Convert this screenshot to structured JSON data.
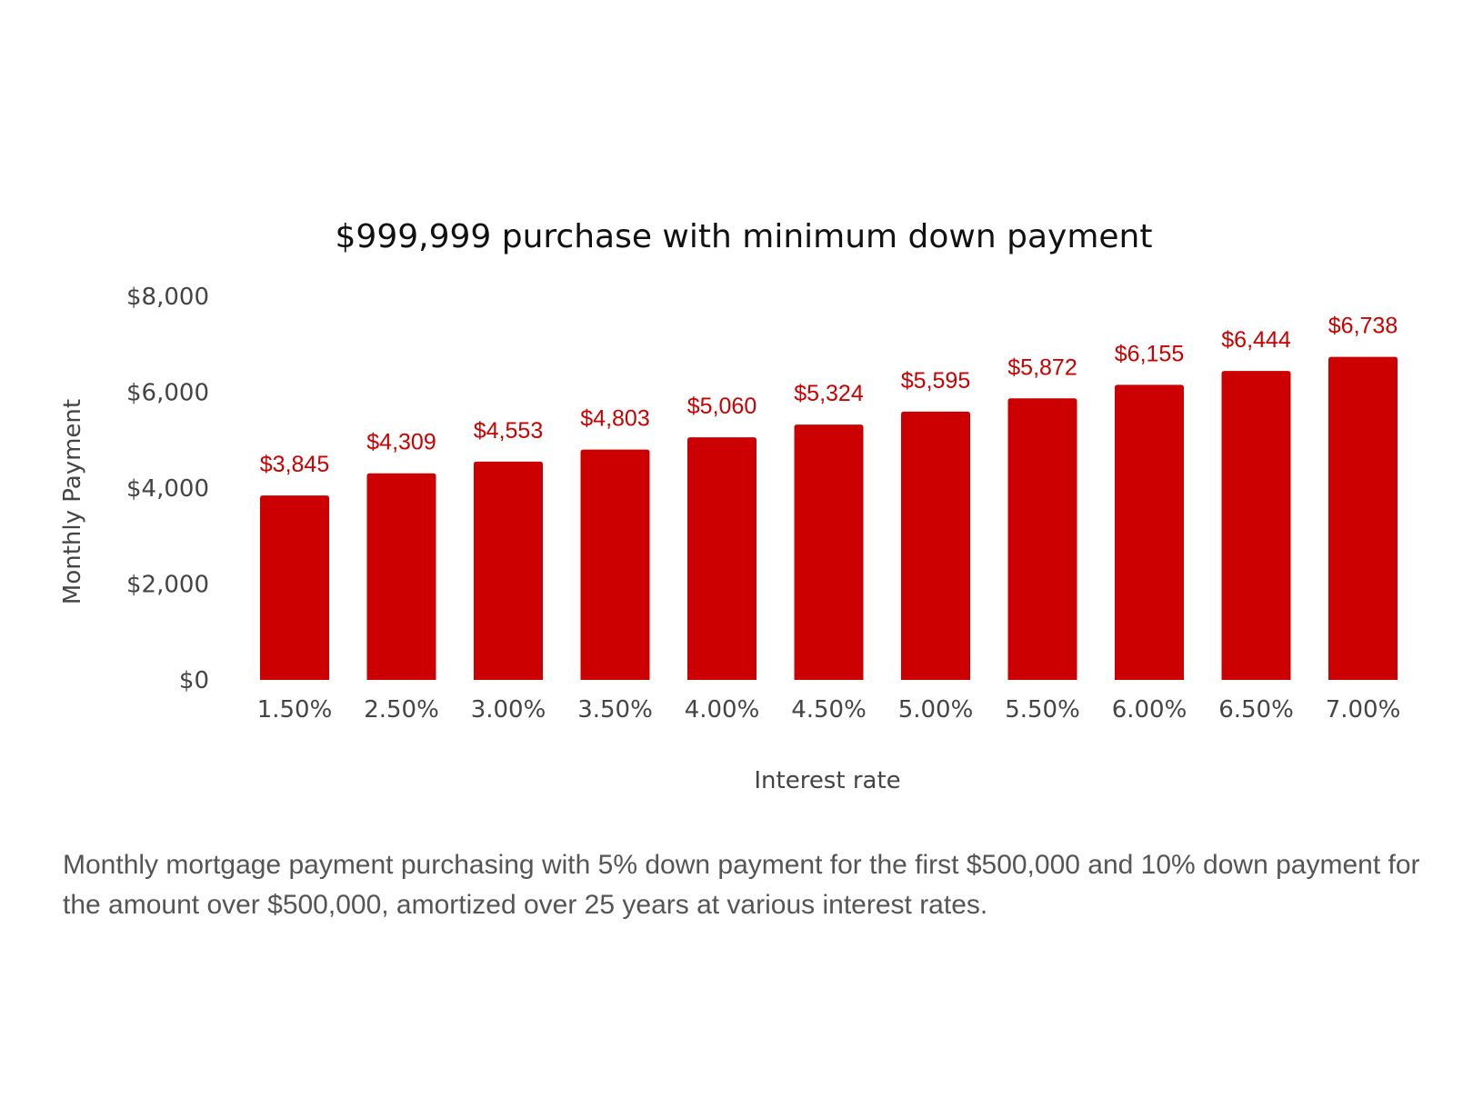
{
  "chart_data": {
    "type": "bar",
    "title": "$999,999 purchase with minimum down payment",
    "xlabel": "Interest rate",
    "ylabel": "Monthly Payment",
    "categories": [
      "1.50%",
      "2.50%",
      "3.00%",
      "3.50%",
      "4.00%",
      "4.50%",
      "5.00%",
      "5.50%",
      "6.00%",
      "6.50%",
      "7.00%"
    ],
    "values": [
      3845,
      4309,
      4553,
      4803,
      5060,
      5324,
      5595,
      5872,
      6155,
      6444,
      6738
    ],
    "data_labels": [
      "$3,845",
      "$4,309",
      "$4,553",
      "$4,803",
      "$5,060",
      "$5,324",
      "$5,595",
      "$5,872",
      "$6,155",
      "$6,444",
      "$6,738"
    ],
    "y_ticks": [
      0,
      2000,
      4000,
      6000,
      8000
    ],
    "y_tick_labels": [
      "$0",
      "$2,000",
      "$4,000",
      "$6,000",
      "$8,000"
    ],
    "ylim": [
      0,
      8000
    ],
    "grid": false,
    "legend": "none",
    "bar_color": "#cc0000",
    "label_color": "#cc0000"
  },
  "caption": "Monthly mortgage payment purchasing with 5% down payment for the first $500,000 and 10% down payment for the amount over $500,000, amortized over 25 years at various interest rates."
}
